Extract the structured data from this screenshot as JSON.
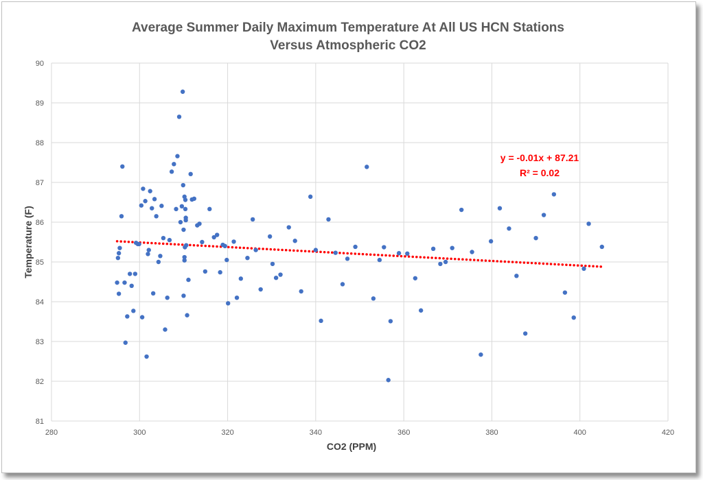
{
  "chart_data": {
    "type": "scatter",
    "title": [
      "Average Summer Daily Maximum Temperature At All US HCN Stations",
      "Versus Atmospheric CO2"
    ],
    "xlabel": "CO2 (PPM)",
    "ylabel": "Temperature (F)",
    "xlim": [
      280,
      420
    ],
    "ylim": [
      81,
      90
    ],
    "x_ticks": [
      "280",
      "300",
      "320",
      "340",
      "360",
      "380",
      "400",
      "420"
    ],
    "y_ticks": [
      "81",
      "82",
      "83",
      "84",
      "85",
      "86",
      "87",
      "88",
      "89",
      "90"
    ],
    "grid": true,
    "series": [
      {
        "marker_color": "#4472c4",
        "points": [
          [
            294.9,
            84.48
          ],
          [
            295.1,
            85.1
          ],
          [
            295.3,
            85.22
          ],
          [
            295.3,
            84.2
          ],
          [
            295.5,
            85.35
          ],
          [
            295.9,
            86.15
          ],
          [
            296.1,
            87.4
          ],
          [
            296.6,
            84.48
          ],
          [
            296.8,
            82.97
          ],
          [
            297.2,
            83.63
          ],
          [
            297.8,
            84.7
          ],
          [
            298.2,
            84.4
          ],
          [
            298.6,
            83.77
          ],
          [
            299.0,
            84.7
          ],
          [
            299.2,
            85.48
          ],
          [
            299.6,
            85.45
          ],
          [
            299.9,
            85.45
          ],
          [
            300.4,
            86.42
          ],
          [
            300.6,
            83.61
          ],
          [
            300.8,
            86.84
          ],
          [
            301.3,
            86.53
          ],
          [
            301.6,
            82.62
          ],
          [
            301.9,
            85.2
          ],
          [
            302.1,
            85.3
          ],
          [
            302.4,
            86.78
          ],
          [
            302.8,
            86.35
          ],
          [
            303.1,
            84.21
          ],
          [
            303.4,
            86.58
          ],
          [
            303.8,
            86.15
          ],
          [
            304.3,
            85.0
          ],
          [
            304.7,
            85.15
          ],
          [
            305.0,
            86.41
          ],
          [
            305.4,
            85.6
          ],
          [
            305.8,
            83.3
          ],
          [
            306.3,
            84.1
          ],
          [
            306.8,
            85.55
          ],
          [
            307.3,
            87.27
          ],
          [
            307.8,
            87.46
          ],
          [
            308.3,
            86.33
          ],
          [
            308.6,
            87.66
          ],
          [
            309.0,
            88.65
          ],
          [
            309.3,
            86.0
          ],
          [
            309.6,
            86.4
          ],
          [
            309.8,
            89.28
          ],
          [
            309.9,
            86.93
          ],
          [
            310.0,
            85.81
          ],
          [
            310.0,
            84.15
          ],
          [
            310.2,
            85.04
          ],
          [
            310.2,
            85.12
          ],
          [
            310.2,
            86.64
          ],
          [
            310.3,
            85.37
          ],
          [
            310.4,
            86.56
          ],
          [
            310.4,
            86.33
          ],
          [
            310.5,
            86.11
          ],
          [
            310.5,
            86.05
          ],
          [
            310.6,
            85.42
          ],
          [
            310.8,
            83.66
          ],
          [
            311.1,
            84.55
          ],
          [
            311.6,
            87.21
          ],
          [
            311.9,
            86.57
          ],
          [
            312.4,
            86.59
          ],
          [
            313.1,
            85.92
          ],
          [
            313.6,
            85.96
          ],
          [
            314.2,
            85.5
          ],
          [
            314.9,
            84.76
          ],
          [
            315.9,
            86.33
          ],
          [
            316.9,
            85.62
          ],
          [
            317.6,
            85.68
          ],
          [
            318.3,
            84.74
          ],
          [
            318.9,
            85.43
          ],
          [
            319.4,
            85.4
          ],
          [
            319.8,
            85.05
          ],
          [
            320.1,
            83.96
          ],
          [
            321.4,
            85.51
          ],
          [
            322.1,
            84.1
          ],
          [
            323.0,
            84.58
          ],
          [
            324.5,
            85.1
          ],
          [
            325.7,
            86.07
          ],
          [
            326.4,
            85.3
          ],
          [
            327.5,
            84.31
          ],
          [
            329.6,
            85.64
          ],
          [
            330.2,
            84.95
          ],
          [
            331.0,
            84.6
          ],
          [
            332.0,
            84.68
          ],
          [
            333.9,
            85.87
          ],
          [
            335.3,
            85.53
          ],
          [
            336.7,
            84.26
          ],
          [
            338.8,
            86.64
          ],
          [
            340.0,
            85.3
          ],
          [
            341.2,
            83.52
          ],
          [
            342.9,
            86.07
          ],
          [
            344.5,
            85.23
          ],
          [
            346.1,
            84.44
          ],
          [
            347.2,
            85.08
          ],
          [
            349.0,
            85.38
          ],
          [
            351.6,
            87.39
          ],
          [
            353.1,
            84.08
          ],
          [
            354.5,
            85.05
          ],
          [
            355.5,
            85.37
          ],
          [
            356.5,
            82.03
          ],
          [
            357.0,
            83.51
          ],
          [
            358.9,
            85.22
          ],
          [
            360.8,
            85.21
          ],
          [
            362.6,
            84.59
          ],
          [
            363.9,
            83.78
          ],
          [
            366.7,
            85.33
          ],
          [
            368.3,
            84.95
          ],
          [
            369.5,
            85.0
          ],
          [
            371.0,
            85.35
          ],
          [
            373.1,
            86.31
          ],
          [
            375.5,
            85.25
          ],
          [
            377.5,
            82.67
          ],
          [
            379.8,
            85.52
          ],
          [
            381.8,
            86.35
          ],
          [
            383.9,
            85.84
          ],
          [
            385.6,
            84.65
          ],
          [
            387.6,
            83.2
          ],
          [
            390.0,
            85.6
          ],
          [
            391.8,
            86.18
          ],
          [
            394.1,
            86.7
          ],
          [
            396.6,
            84.23
          ],
          [
            398.6,
            83.6
          ],
          [
            400.9,
            84.83
          ],
          [
            402.0,
            85.96
          ],
          [
            405.0,
            85.38
          ]
        ]
      }
    ],
    "trendline": {
      "color": "#ff0000",
      "style": "dotted",
      "points": [
        [
          294.9,
          85.52
        ],
        [
          405.0,
          84.88
        ]
      ],
      "equation": "y = -0.01x + 87.21",
      "r_squared": "R² = 0.02"
    }
  }
}
